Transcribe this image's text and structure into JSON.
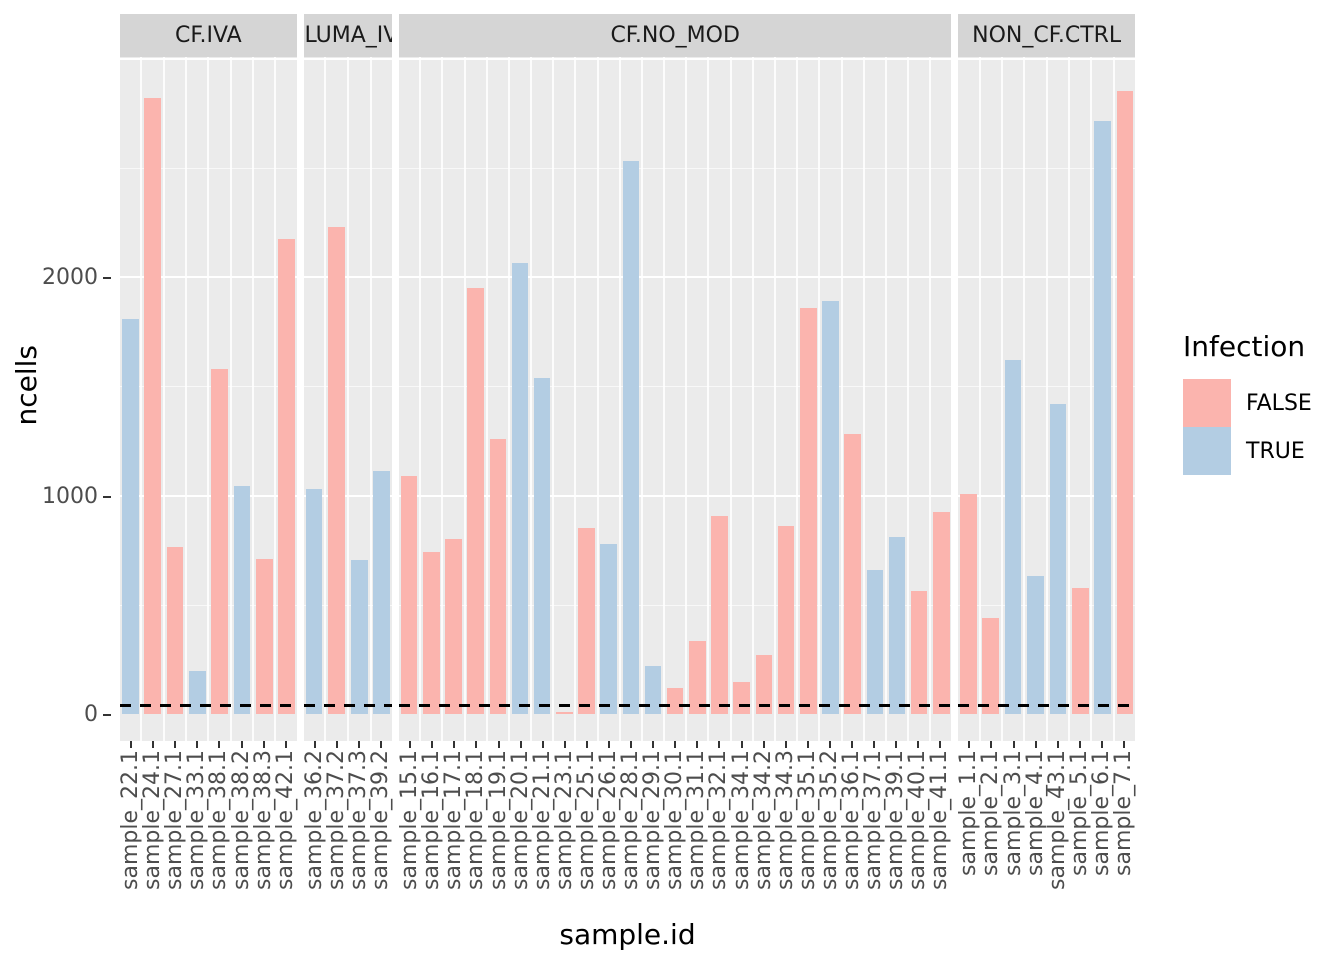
{
  "colors": {
    "false_fill": "#FBB4AE",
    "true_fill": "#B3CDE3",
    "panel_bg": "#EBEBEB",
    "strip_bg": "#D5D5D5",
    "gridline": "#FFFFFF",
    "axis_text": "#4D4D4D",
    "threshold_line": "#000000"
  },
  "chart_data": {
    "type": "bar",
    "title": "",
    "xlabel": "sample.id",
    "ylabel": "ncells",
    "y_ticks": [
      "0",
      "1000",
      "2000"
    ],
    "y_tick_values": [
      0,
      1000,
      2000
    ],
    "ylim_display": [
      0,
      3007
    ],
    "grid": "on",
    "threshold_hline": {
      "value": 40,
      "style": "dashed",
      "color": "#000000"
    },
    "legend": {
      "title": "Infection",
      "position": "right",
      "entries": [
        {
          "label": "FALSE",
          "color": "#FBB4AE"
        },
        {
          "label": "TRUE",
          "color": "#B3CDE3"
        }
      ]
    },
    "facets": [
      {
        "label": "CF.IVA",
        "bars": [
          {
            "sample": "sample_22.1",
            "infection": "TRUE",
            "ncells": 1810
          },
          {
            "sample": "sample_24.1",
            "infection": "FALSE",
            "ncells": 2820
          },
          {
            "sample": "sample_27.1",
            "infection": "FALSE",
            "ncells": 765
          },
          {
            "sample": "sample_33.1",
            "infection": "TRUE",
            "ncells": 195
          },
          {
            "sample": "sample_38.1",
            "infection": "FALSE",
            "ncells": 1580
          },
          {
            "sample": "sample_38.2",
            "infection": "TRUE",
            "ncells": 1045
          },
          {
            "sample": "sample_38.3",
            "infection": "FALSE",
            "ncells": 710
          },
          {
            "sample": "sample_42.1",
            "infection": "FALSE",
            "ncells": 2175
          }
        ]
      },
      {
        "label": ".LUMA_IV",
        "bars": [
          {
            "sample": "sample_36.2",
            "infection": "TRUE",
            "ncells": 1030
          },
          {
            "sample": "sample_37.2",
            "infection": "FALSE",
            "ncells": 2230
          },
          {
            "sample": "sample_37.3",
            "infection": "TRUE",
            "ncells": 705
          },
          {
            "sample": "sample_39.2",
            "infection": "TRUE",
            "ncells": 1110
          }
        ]
      },
      {
        "label": "CF.NO_MOD",
        "bars": [
          {
            "sample": "sample_15.1",
            "infection": "FALSE",
            "ncells": 1090
          },
          {
            "sample": "sample_16.1",
            "infection": "FALSE",
            "ncells": 740
          },
          {
            "sample": "sample_17.1",
            "infection": "FALSE",
            "ncells": 800
          },
          {
            "sample": "sample_18.1",
            "infection": "FALSE",
            "ncells": 1950
          },
          {
            "sample": "sample_19.1",
            "infection": "FALSE",
            "ncells": 1260
          },
          {
            "sample": "sample_20.1",
            "infection": "TRUE",
            "ncells": 2065
          },
          {
            "sample": "sample_21.1",
            "infection": "TRUE",
            "ncells": 1540
          },
          {
            "sample": "sample_23.1",
            "infection": "FALSE",
            "ncells": 10
          },
          {
            "sample": "sample_25.1",
            "infection": "FALSE",
            "ncells": 850
          },
          {
            "sample": "sample_26.1",
            "infection": "TRUE",
            "ncells": 780
          },
          {
            "sample": "sample_28.1",
            "infection": "TRUE",
            "ncells": 2530
          },
          {
            "sample": "sample_29.1",
            "infection": "TRUE",
            "ncells": 220
          },
          {
            "sample": "sample_30.1",
            "infection": "FALSE",
            "ncells": 120
          },
          {
            "sample": "sample_31.1",
            "infection": "FALSE",
            "ncells": 335
          },
          {
            "sample": "sample_32.1",
            "infection": "FALSE",
            "ncells": 905
          },
          {
            "sample": "sample_34.1",
            "infection": "FALSE",
            "ncells": 145
          },
          {
            "sample": "sample_34.2",
            "infection": "FALSE",
            "ncells": 270
          },
          {
            "sample": "sample_34.3",
            "infection": "FALSE",
            "ncells": 860
          },
          {
            "sample": "sample_35.1",
            "infection": "FALSE",
            "ncells": 1860
          },
          {
            "sample": "sample_35.2",
            "infection": "TRUE",
            "ncells": 1890
          },
          {
            "sample": "sample_36.1",
            "infection": "FALSE",
            "ncells": 1280
          },
          {
            "sample": "sample_37.1",
            "infection": "TRUE",
            "ncells": 660
          },
          {
            "sample": "sample_39.1",
            "infection": "TRUE",
            "ncells": 810
          },
          {
            "sample": "sample_40.1",
            "infection": "FALSE",
            "ncells": 565
          },
          {
            "sample": "sample_41.1",
            "infection": "FALSE",
            "ncells": 925
          }
        ]
      },
      {
        "label": "NON_CF.CTRL",
        "bars": [
          {
            "sample": "sample_1.1",
            "infection": "FALSE",
            "ncells": 1005
          },
          {
            "sample": "sample_2.1",
            "infection": "FALSE",
            "ncells": 440
          },
          {
            "sample": "sample_3.1",
            "infection": "TRUE",
            "ncells": 1620
          },
          {
            "sample": "sample_4.1",
            "infection": "TRUE",
            "ncells": 630
          },
          {
            "sample": "sample_43.1",
            "infection": "TRUE",
            "ncells": 1420
          },
          {
            "sample": "sample_5.1",
            "infection": "FALSE",
            "ncells": 575
          },
          {
            "sample": "sample_6.1",
            "infection": "TRUE",
            "ncells": 2715
          },
          {
            "sample": "sample_7.1",
            "infection": "FALSE",
            "ncells": 2850
          }
        ]
      }
    ]
  }
}
